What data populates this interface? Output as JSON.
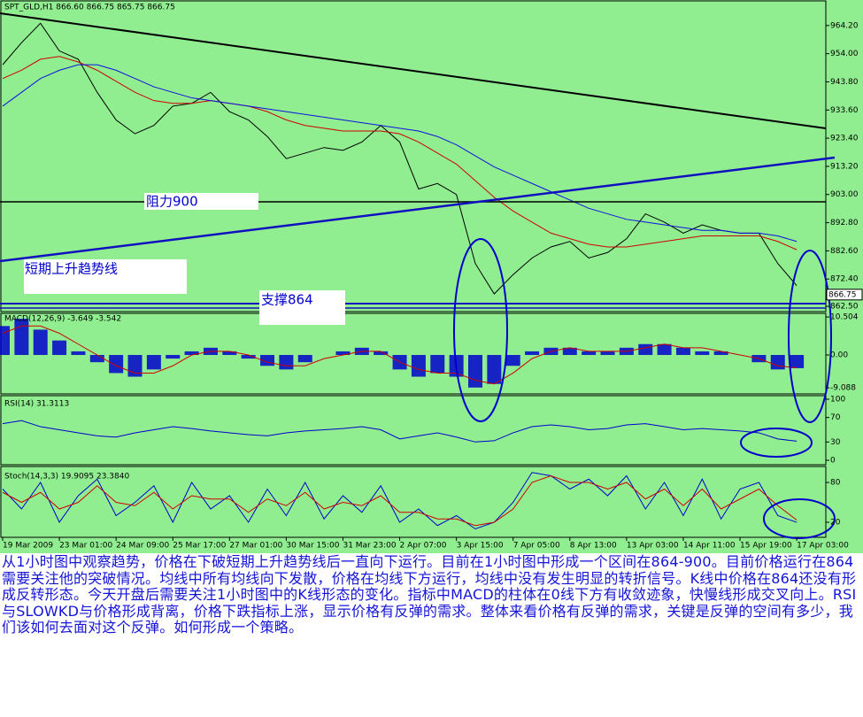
{
  "chart_data": [
    {
      "type": "line",
      "title": "SPT_GLD,H1  866.60 866.75 865.75 866.75",
      "ylim": [
        860.6,
        972.8
      ],
      "yticks": [
        {
          "value": 964.2,
          "label": "964.20"
        },
        {
          "value": 954,
          "label": "954.00"
        },
        {
          "value": 943.8,
          "label": "943.80"
        },
        {
          "value": 933.6,
          "label": "933.60"
        },
        {
          "value": 923.4,
          "label": "923.40"
        },
        {
          "value": 913.2,
          "label": "913.20"
        },
        {
          "value": 903,
          "label": "903.00"
        },
        {
          "value": 892.8,
          "label": "892.80"
        },
        {
          "value": 882.6,
          "label": "882.60"
        },
        {
          "value": 872.4,
          "label": "872.40"
        },
        {
          "value": 862.5,
          "label": "862.50"
        }
      ],
      "last_price": 866.75,
      "annotations": [
        "阻力900",
        "短期上升趋势线",
        "支撑864"
      ],
      "series": [
        {
          "color": "#000000",
          "values": [
            950,
            958,
            965,
            955,
            952,
            940,
            930,
            925,
            928,
            935,
            936,
            940,
            933,
            930,
            924,
            916,
            918,
            920,
            919,
            922,
            928,
            922,
            905,
            907,
            903,
            878,
            867,
            874,
            880,
            884,
            886,
            880,
            882,
            887,
            896,
            893,
            889,
            892,
            890,
            889,
            889,
            878,
            870
          ]
        },
        {
          "color": "#d00000",
          "values": [
            945,
            948,
            952,
            953,
            951,
            948,
            944,
            940,
            937,
            936,
            936,
            937,
            936,
            935,
            933,
            930,
            928,
            927,
            926,
            926,
            926,
            925,
            922,
            918,
            914,
            908,
            902,
            897,
            893,
            889,
            887,
            885,
            884,
            884,
            885,
            886,
            887,
            888,
            888,
            888,
            888,
            886,
            883
          ]
        },
        {
          "color": "#1010e0",
          "values": [
            935,
            940,
            945,
            948,
            950,
            950,
            948,
            945,
            942,
            940,
            938,
            937,
            936,
            935,
            934,
            933,
            932,
            931,
            930,
            929,
            928,
            927,
            926,
            924,
            921,
            917,
            913,
            910,
            907,
            904,
            901,
            898,
            896,
            894,
            893,
            892,
            891,
            890,
            890,
            889,
            889,
            888,
            886
          ]
        }
      ]
    },
    {
      "type": "macd",
      "title": "MACD(12,26,9) -3.649 -3.542",
      "ylim": [
        -10.76,
        11.5
      ],
      "yticks": [
        10.504,
        {
          "value": 0,
          "label": "0.00"
        },
        -9.088
      ],
      "series": [
        {
          "type": "bar",
          "color": "#0000cc",
          "values": [
            8,
            10,
            7,
            4,
            1,
            -2,
            -5,
            -6,
            -4,
            -1,
            1,
            2,
            1,
            -1,
            -3,
            -4,
            -2,
            0,
            1,
            2,
            1,
            -4,
            -6,
            -5,
            -6,
            -9,
            -8,
            -3,
            1,
            2,
            2,
            1,
            1,
            2,
            3,
            3,
            2,
            1,
            1,
            0,
            -2,
            -4,
            -3.649
          ]
        },
        {
          "type": "line",
          "color": "#d00000",
          "values": [
            6,
            8,
            8,
            6,
            3,
            0,
            -3,
            -5,
            -5,
            -3,
            0,
            1,
            1,
            0,
            -2,
            -3,
            -3,
            -1,
            0,
            1,
            1,
            -2,
            -4,
            -5,
            -5,
            -7,
            -8,
            -5,
            -1,
            1,
            2,
            1,
            1,
            1,
            2,
            3,
            2,
            2,
            1,
            0,
            -1,
            -3,
            -3.542
          ]
        }
      ]
    },
    {
      "type": "line",
      "title": "RSI(14) 31.3113",
      "ylim": [
        0,
        100
      ],
      "yticks": [
        100,
        70,
        30,
        0
      ],
      "series": [
        {
          "color": "#0000cc",
          "values": [
            60,
            65,
            55,
            50,
            45,
            40,
            38,
            45,
            50,
            55,
            52,
            48,
            45,
            42,
            40,
            45,
            48,
            50,
            52,
            55,
            50,
            35,
            40,
            45,
            38,
            30,
            32,
            45,
            55,
            58,
            55,
            50,
            52,
            58,
            60,
            55,
            50,
            52,
            50,
            48,
            45,
            35,
            31.3113
          ]
        }
      ]
    },
    {
      "type": "line",
      "title": "Stoch(14,3,3) 19.9095 23.3840",
      "ylim": [
        0,
        100
      ],
      "yticks": [
        80,
        20
      ],
      "categories": [
        "19 Mar 2009",
        null,
        null,
        "23 Mar 01:00",
        null,
        null,
        "24 Mar 09:00",
        null,
        null,
        "25 Mar 17:00",
        null,
        null,
        "27 Mar 01:00",
        null,
        null,
        "30 Mar 15:00",
        null,
        null,
        "31 Mar 23:00",
        null,
        null,
        "2 Apr 07:00",
        null,
        null,
        "3 Apr 15:00",
        null,
        null,
        "7 Apr 05:00",
        null,
        null,
        "8 Apr 13:00",
        null,
        null,
        "13 Apr 03:00",
        null,
        null,
        "14 Apr 11:00",
        null,
        null,
        "15 Apr 19:00",
        null,
        null,
        "17 Apr 03:00"
      ],
      "series": [
        {
          "color": "#0000cc",
          "values": [
            70,
            40,
            80,
            20,
            60,
            85,
            30,
            50,
            75,
            20,
            80,
            40,
            60,
            20,
            70,
            30,
            80,
            25,
            60,
            35,
            75,
            20,
            40,
            15,
            30,
            10,
            20,
            50,
            95,
            90,
            70,
            85,
            60,
            90,
            40,
            80,
            30,
            85,
            25,
            70,
            80,
            30,
            19.9095
          ]
        },
        {
          "color": "#d00000",
          "values": [
            65,
            50,
            65,
            40,
            50,
            75,
            50,
            45,
            65,
            40,
            60,
            55,
            55,
            35,
            55,
            45,
            65,
            40,
            50,
            45,
            60,
            35,
            35,
            25,
            25,
            15,
            20,
            40,
            80,
            90,
            80,
            80,
            70,
            80,
            55,
            70,
            45,
            70,
            40,
            55,
            70,
            45,
            23.384
          ]
        }
      ]
    }
  ],
  "description": "从1小时图中观察趋势，价格在下破短期上升趋势线后一直向下运行。目前在1小时图中形成一个区间在864-900。目前价格运行在864需要关注他的突破情况。均线中所有均线向下发散，价格在均线下方运行，均线中没有发生明显的转折信号。K线中价格在864还没有形成反转形态。今天开盘后需要关注1小时图中的K线形态的变化。指标中MACD的柱体在0线下方有收敛迹象，快慢线形成交叉向上。RSI与SLOWKD与价格形成背离，价格下跌指标上涨，显示价格有反弹的需求。整体来看价格有反弹的需求，关键是反弹的空间有多少，我们该如何去面对这个反弹。如何形成一个策略。"
}
